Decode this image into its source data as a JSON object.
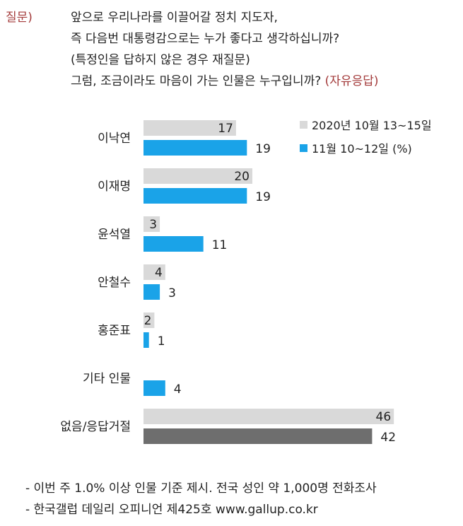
{
  "question": {
    "label": "질문)",
    "lines": [
      "앞으로 우리나라를 이끌어갈 정치 지도자,",
      "즉 다음번 대통령감으로는 누가 좋다고 생각하십니까?",
      "(특정인을 답하지 않은 경우 재질문)",
      "그럼, 조금이라도 마음이 가는 인물은 누구입니까?"
    ],
    "tag": "(자유응답)"
  },
  "chart_data": {
    "type": "bar",
    "orientation": "horizontal",
    "categories": [
      "이낙연",
      "이재명",
      "윤석열",
      "안철수",
      "홍준표",
      "기타 인물",
      "없음/응답거절"
    ],
    "series": [
      {
        "name": "2020년 10월 13~15일",
        "values": [
          17,
          20,
          3,
          4,
          2,
          null,
          46
        ],
        "color": "#d9d9d9"
      },
      {
        "name": "11월 10~12일 (%)",
        "values": [
          19,
          19,
          11,
          3,
          1,
          4,
          42
        ],
        "color": "#1aa3e8"
      }
    ],
    "highlight_colors": {
      "last_category_series_1": "#d9d9d9",
      "last_category_series_2": "#6e6e6e"
    },
    "legend_position": "top-right",
    "grid": false
  },
  "footnotes": [
    "- 이번 주 1.0% 이상 인물 기준 제시. 전국 성인 약 1,000명 전화조사",
    "- 한국갤럽 데일리 오피니언 제425호 www.gallup.co.kr"
  ]
}
